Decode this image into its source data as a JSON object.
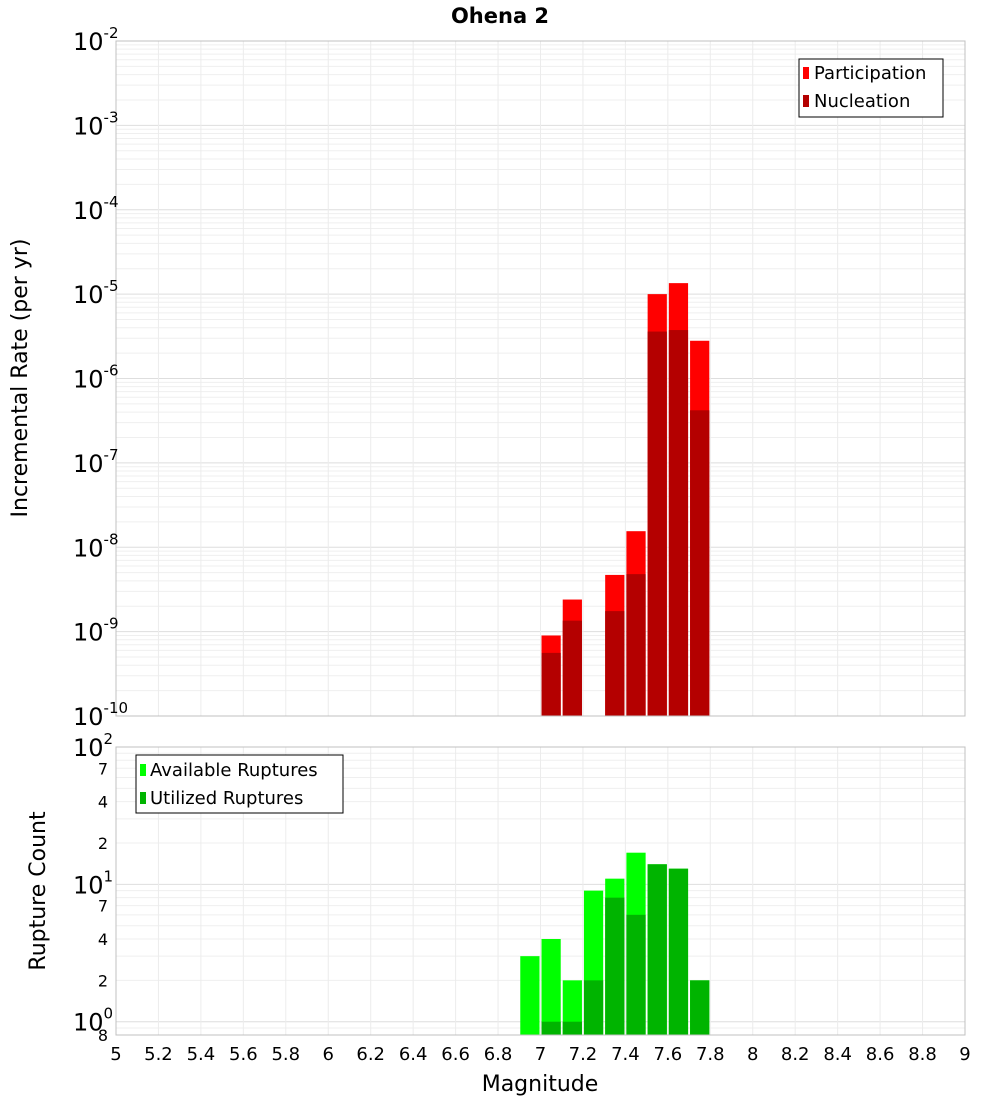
{
  "title": "Ohena 2",
  "xlabel": "Magnitude",
  "colors": {
    "participation": "#ff0000",
    "nucleation": "#b40000",
    "available": "#00ff00",
    "utilized": "#00b400",
    "grid": "#e6e6e6",
    "frame": "#c0c0c0"
  },
  "x_axis": {
    "range": [
      5,
      9
    ],
    "ticks": [
      5,
      5.2,
      5.4,
      5.6,
      5.8,
      6,
      6.2,
      6.4,
      6.6,
      6.8,
      7,
      7.2,
      7.4,
      7.6,
      7.8,
      8,
      8.2,
      8.4,
      8.6,
      8.8,
      9
    ],
    "tick_labels": [
      "5",
      "5.2",
      "5.4",
      "5.6",
      "5.8",
      "6",
      "6.2",
      "6.4",
      "6.6",
      "6.8",
      "7",
      "7.2",
      "7.4",
      "7.6",
      "7.8",
      "8",
      "8.2",
      "8.4",
      "8.6",
      "8.8",
      "9"
    ]
  },
  "chart_data": [
    {
      "type": "bar",
      "ylabel": "Incremental Rate (per yr)",
      "yscale": "log",
      "ylim": [
        1e-10,
        0.01
      ],
      "y_ticks": [
        {
          "base": "10",
          "exp": "-2"
        },
        {
          "base": "10",
          "exp": "-3"
        },
        {
          "base": "10",
          "exp": "-4"
        },
        {
          "base": "10",
          "exp": "-5"
        },
        {
          "base": "10",
          "exp": "-6"
        },
        {
          "base": "10",
          "exp": "-7"
        },
        {
          "base": "10",
          "exp": "-8"
        },
        {
          "base": "10",
          "exp": "-9"
        },
        {
          "base": "10",
          "exp": "-10"
        }
      ],
      "legend_position": "top-right",
      "bar_width": 0.1,
      "x": [
        7.05,
        7.15,
        7.35,
        7.45,
        7.55,
        7.65,
        7.75
      ],
      "series": [
        {
          "name": "Participation",
          "color_key": "participation",
          "values": [
            9e-10,
            2.4e-09,
            4.7e-09,
            1.55e-08,
            1e-05,
            1.35e-05,
            2.8e-06
          ]
        },
        {
          "name": "Nucleation",
          "color_key": "nucleation",
          "values": [
            5.6e-10,
            1.35e-09,
            1.75e-09,
            4.8e-09,
            3.6e-06,
            3.75e-06,
            4.2e-07
          ]
        }
      ]
    },
    {
      "type": "bar",
      "ylabel": "Rupture Count",
      "yscale": "log",
      "ylim": [
        0.8,
        100
      ],
      "y_ticks": [
        {
          "value": 100,
          "base": "10",
          "exp": "2"
        },
        {
          "value": 70,
          "label": "7"
        },
        {
          "value": 40,
          "label": "4"
        },
        {
          "value": 20,
          "label": "2"
        },
        {
          "value": 10,
          "base": "10",
          "exp": "1"
        },
        {
          "value": 7,
          "label": "7"
        },
        {
          "value": 4,
          "label": "4"
        },
        {
          "value": 2,
          "label": "2"
        },
        {
          "value": 1,
          "base": "10",
          "exp": "0"
        },
        {
          "value": 0.8,
          "label": "8"
        }
      ],
      "legend_position": "top-left",
      "bar_width": 0.1,
      "x": [
        6.95,
        7.05,
        7.15,
        7.25,
        7.35,
        7.45,
        7.55,
        7.65,
        7.75
      ],
      "series": [
        {
          "name": "Available Ruptures",
          "color_key": "available",
          "values": [
            3,
            4,
            2,
            9,
            11,
            17,
            14,
            13,
            2
          ]
        },
        {
          "name": "Utilized Ruptures",
          "color_key": "utilized",
          "values": [
            0,
            1,
            1,
            2,
            8,
            6,
            14,
            13,
            2
          ]
        }
      ]
    }
  ]
}
